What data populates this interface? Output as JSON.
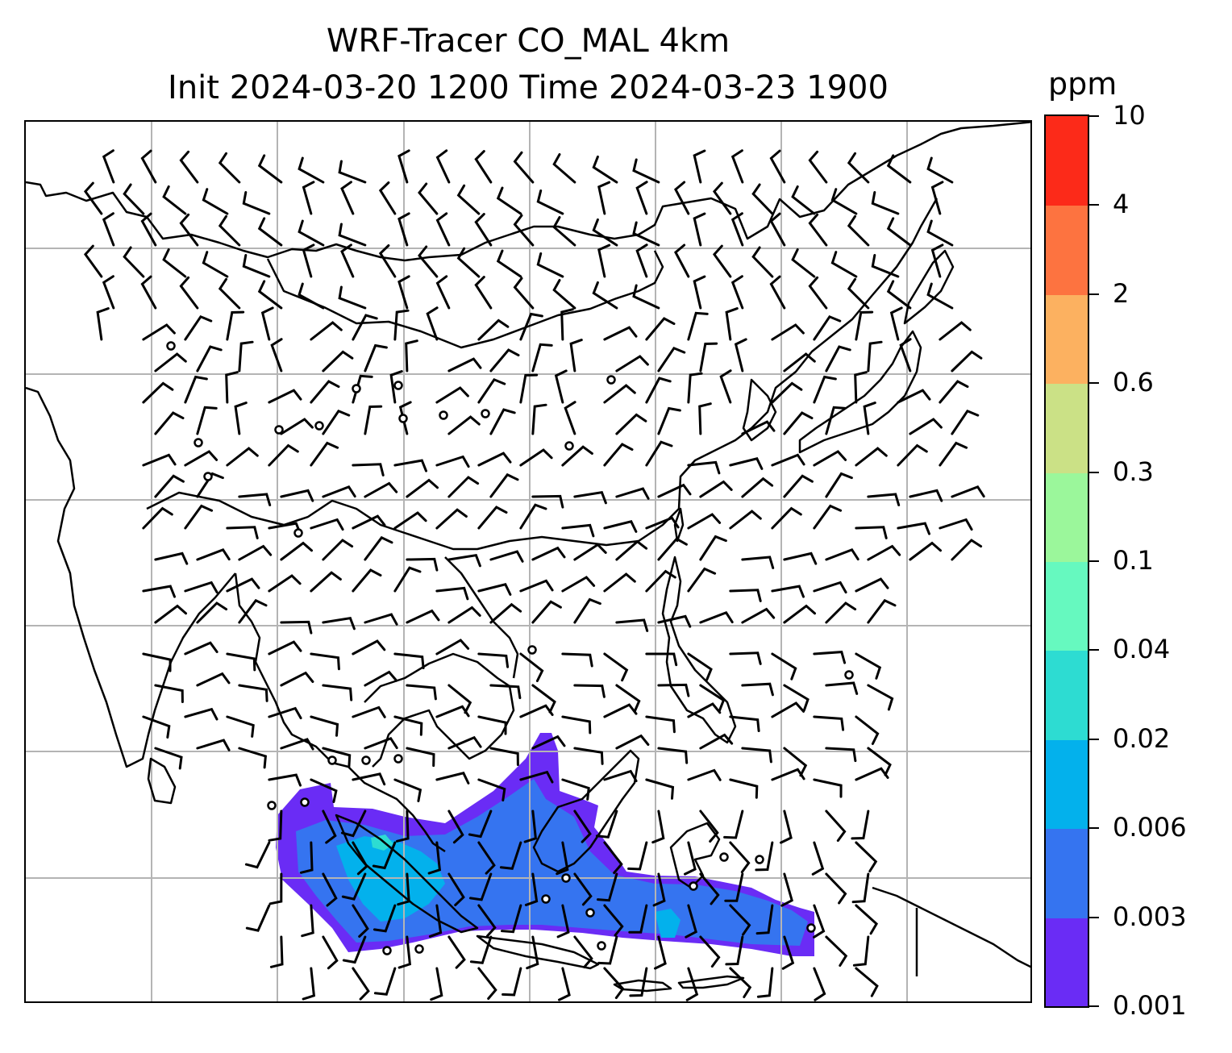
{
  "title": {
    "line1": "WRF-Tracer CO_MAL 4km",
    "line2": "Init 2024-03-20 1200 Time 2024-03-23 1900"
  },
  "colorbar": {
    "unit": "ppm",
    "levels": [
      "0.001",
      "0.003",
      "0.006",
      "0.02",
      "0.04",
      "0.1",
      "0.3",
      "0.6",
      "2",
      "4",
      "10"
    ],
    "colors": [
      "#6a2cf5",
      "#3574f0",
      "#03b1ec",
      "#2ddcd2",
      "#66f9bf",
      "#9bf79b",
      "#cbe186",
      "#fcb160",
      "#fd7340",
      "#fc2a19"
    ]
  },
  "map": {
    "gridline_color": "#b4b4b4",
    "coastline_color": "#000000",
    "wind_barb_color": "#000000"
  }
}
